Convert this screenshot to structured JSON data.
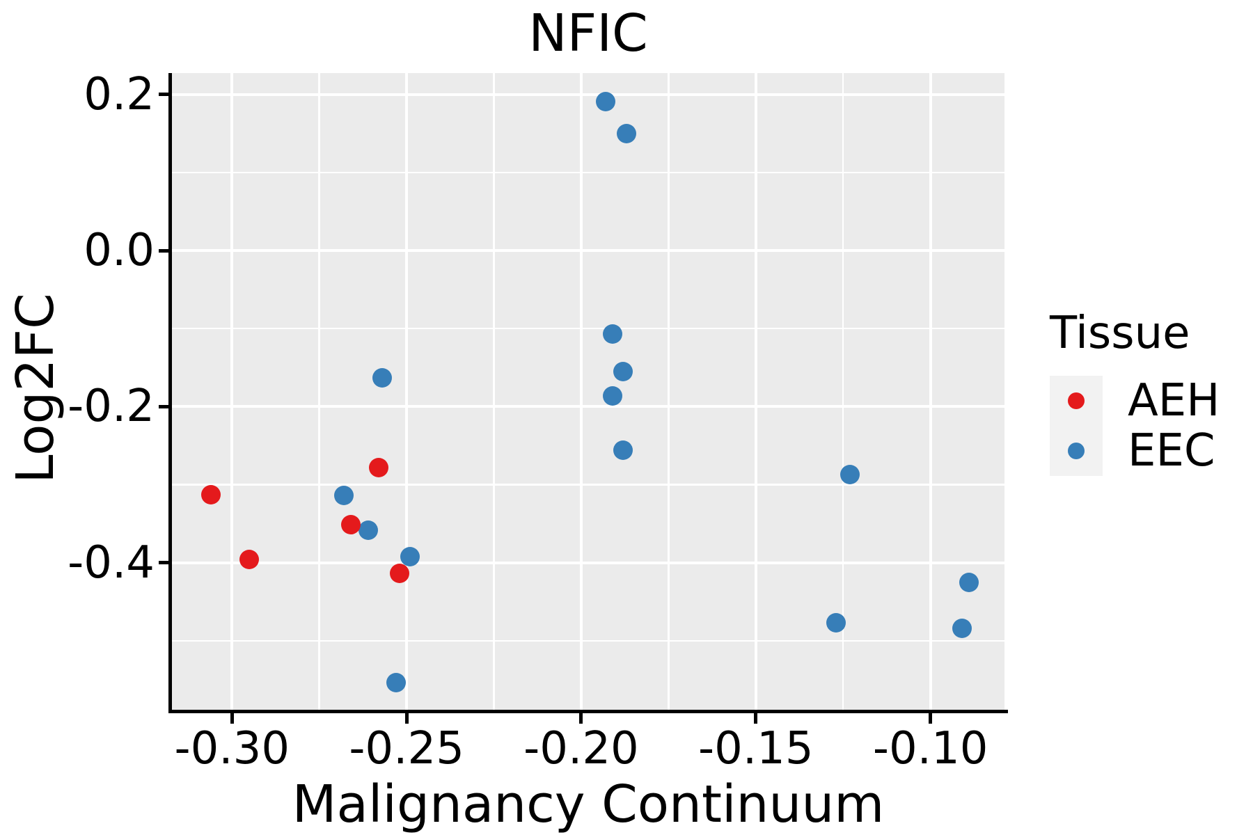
{
  "chart_data": {
    "type": "scatter",
    "title": "NFIC",
    "xlabel": "Malignancy Continuum",
    "ylabel": "Log2FC",
    "xlim": [
      -0.3172,
      -0.0788
    ],
    "ylim": [
      -0.5885,
      0.2275
    ],
    "x_major_ticks": [
      -0.3,
      -0.25,
      -0.2,
      -0.15,
      -0.1
    ],
    "x_tick_labels": [
      "-0.30",
      "-0.25",
      "-0.20",
      "-0.15",
      "-0.10"
    ],
    "x_minor_ticks": [
      -0.275,
      -0.225,
      -0.175,
      -0.125
    ],
    "y_major_ticks": [
      0.2,
      0.0,
      -0.2,
      -0.4
    ],
    "y_tick_labels": [
      "0.2",
      "0.0",
      "-0.2",
      "-0.4"
    ],
    "y_minor_ticks": [
      0.1,
      -0.1,
      -0.3,
      -0.5
    ],
    "grid": "major and minor white gridlines on gray panel",
    "panel_color": "#EBEBEB",
    "gridline_color": "#FFFFFF",
    "axis_line_color": "#000000",
    "legend": {
      "title": "Tissue",
      "position": "right",
      "key_background": "#F2F2F2"
    },
    "series": [
      {
        "name": "AEH",
        "color": "#E41A1C",
        "points": [
          [
            -0.306,
            -0.313
          ],
          [
            -0.295,
            -0.396
          ],
          [
            -0.266,
            -0.351
          ],
          [
            -0.258,
            -0.278
          ],
          [
            -0.252,
            -0.414
          ]
        ]
      },
      {
        "name": "EEC",
        "color": "#377EB8",
        "points": [
          [
            -0.268,
            -0.314
          ],
          [
            -0.261,
            -0.358
          ],
          [
            -0.257,
            -0.163
          ],
          [
            -0.253,
            -0.554
          ],
          [
            -0.249,
            -0.392
          ],
          [
            -0.193,
            0.191
          ],
          [
            -0.191,
            -0.107
          ],
          [
            -0.191,
            -0.186
          ],
          [
            -0.188,
            -0.155
          ],
          [
            -0.188,
            -0.256
          ],
          [
            -0.187,
            0.15
          ],
          [
            -0.127,
            -0.477
          ],
          [
            -0.123,
            -0.287
          ],
          [
            -0.091,
            -0.484
          ],
          [
            -0.089,
            -0.425
          ]
        ]
      }
    ]
  }
}
